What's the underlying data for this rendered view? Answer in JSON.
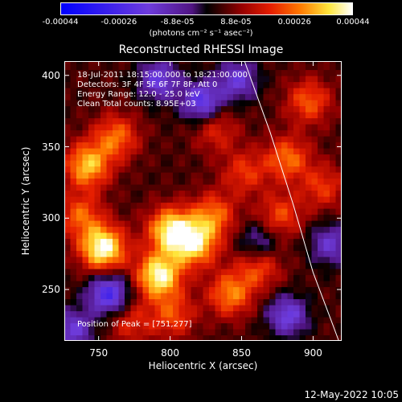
{
  "title": "Reconstructed RHESSI Image",
  "colorbar": {
    "ticks": [
      "-0.00044",
      "-0.00026",
      "-8.8e-05",
      "8.8e-05",
      "0.00026",
      "0.00044"
    ],
    "units": "(photons cm⁻² s⁻¹ asec⁻²)",
    "range": [
      -0.00044,
      0.00044
    ]
  },
  "annotations": {
    "time": "18-Jul-2011 18:15:00.000 to 18:21:00.000",
    "detectors": "Detectors: 3F 4F 5F 6F 7F 8F, Att 0",
    "energy": "Energy Range: 12.0 - 25.0 keV",
    "clean": "Clean     Total counts: 8.95E+03",
    "peak": "Position of Peak = [751,277]"
  },
  "date_stamp": "12-May-2022 10:05",
  "chart_data": {
    "type": "heatmap",
    "title": "Reconstructed RHESSI Image",
    "xlabel": "Heliocentric X (arcsec)",
    "ylabel": "Heliocentric Y (arcsec)",
    "xlim": [
      726,
      920
    ],
    "ylim": [
      214,
      410
    ],
    "xticks": [
      750,
      800,
      850,
      900
    ],
    "yticks": [
      250,
      300,
      350,
      400
    ],
    "limb_curve": [
      [
        852,
        410
      ],
      [
        870,
        360
      ],
      [
        886,
        310
      ],
      [
        900,
        262
      ],
      [
        912,
        230
      ],
      [
        918,
        214
      ]
    ],
    "blobs": [
      {
        "x": 751,
        "y": 277,
        "v": 1.0
      },
      {
        "x": 790,
        "y": 258,
        "v": 0.95
      },
      {
        "x": 798,
        "y": 290,
        "v": 0.85
      },
      {
        "x": 815,
        "y": 280,
        "v": 0.8
      },
      {
        "x": 740,
        "y": 335,
        "v": 0.75
      },
      {
        "x": 760,
        "y": 355,
        "v": 0.55
      },
      {
        "x": 840,
        "y": 245,
        "v": 0.6
      },
      {
        "x": 828,
        "y": 300,
        "v": 0.55
      },
      {
        "x": 860,
        "y": 265,
        "v": 0.5
      },
      {
        "x": 880,
        "y": 340,
        "v": 0.55
      },
      {
        "x": 875,
        "y": 300,
        "v": 0.45
      },
      {
        "x": 895,
        "y": 380,
        "v": 0.5
      },
      {
        "x": 850,
        "y": 330,
        "v": 0.4
      },
      {
        "x": 800,
        "y": 230,
        "v": 0.45
      },
      {
        "x": 830,
        "y": 360,
        "v": 0.35
      },
      {
        "x": 905,
        "y": 320,
        "v": 0.4
      },
      {
        "x": 770,
        "y": 225,
        "v": 0.35
      },
      {
        "x": 735,
        "y": 300,
        "v": 0.5
      }
    ],
    "negatives": [
      {
        "x": 755,
        "y": 245,
        "v": -0.8
      },
      {
        "x": 820,
        "y": 380,
        "v": -0.7
      },
      {
        "x": 790,
        "y": 395,
        "v": -0.6
      },
      {
        "x": 845,
        "y": 395,
        "v": -0.55
      },
      {
        "x": 880,
        "y": 230,
        "v": -0.6
      },
      {
        "x": 730,
        "y": 220,
        "v": -0.55
      },
      {
        "x": 910,
        "y": 280,
        "v": -0.5
      },
      {
        "x": 860,
        "y": 280,
        "v": -0.45
      }
    ]
  }
}
